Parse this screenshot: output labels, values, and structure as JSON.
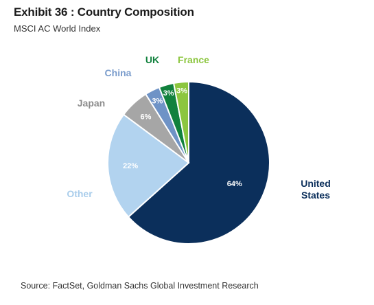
{
  "header": {
    "title": "Exhibit 36 : Country Composition",
    "subtitle": "MSCI AC World Index"
  },
  "footer": {
    "source": "Source: FactSet, Goldman Sachs Global Investment Research"
  },
  "chart_data": {
    "type": "pie",
    "title": "Exhibit 36 : Country Composition",
    "subtitle": "MSCI AC World Index",
    "slices": [
      {
        "name": "United States",
        "label_lines": [
          "United",
          "States"
        ],
        "value": 64,
        "value_label": "64%",
        "color": "#0b2f5b",
        "label_color": "#0b2f5b"
      },
      {
        "name": "Other",
        "label_lines": [
          "Other"
        ],
        "value": 22,
        "value_label": "22%",
        "color": "#b2d3ef",
        "label_color": "#a9cdeb"
      },
      {
        "name": "Japan",
        "label_lines": [
          "Japan"
        ],
        "value": 6,
        "value_label": "6%",
        "color": "#a6a6a6",
        "label_color": "#8c8c8c"
      },
      {
        "name": "China",
        "label_lines": [
          "China"
        ],
        "value": 3,
        "value_label": "3%",
        "color": "#6f93c6",
        "label_color": "#7a9ccc"
      },
      {
        "name": "UK",
        "label_lines": [
          "UK"
        ],
        "value": 3,
        "value_label": "3%",
        "color": "#11813d",
        "label_color": "#11813d"
      },
      {
        "name": "France",
        "label_lines": [
          "France"
        ],
        "value": 3,
        "value_label": "3%",
        "color": "#8cc63f",
        "label_color": "#8cc63f"
      }
    ],
    "order": "counterclockwise from top, United States clockwise from top"
  }
}
